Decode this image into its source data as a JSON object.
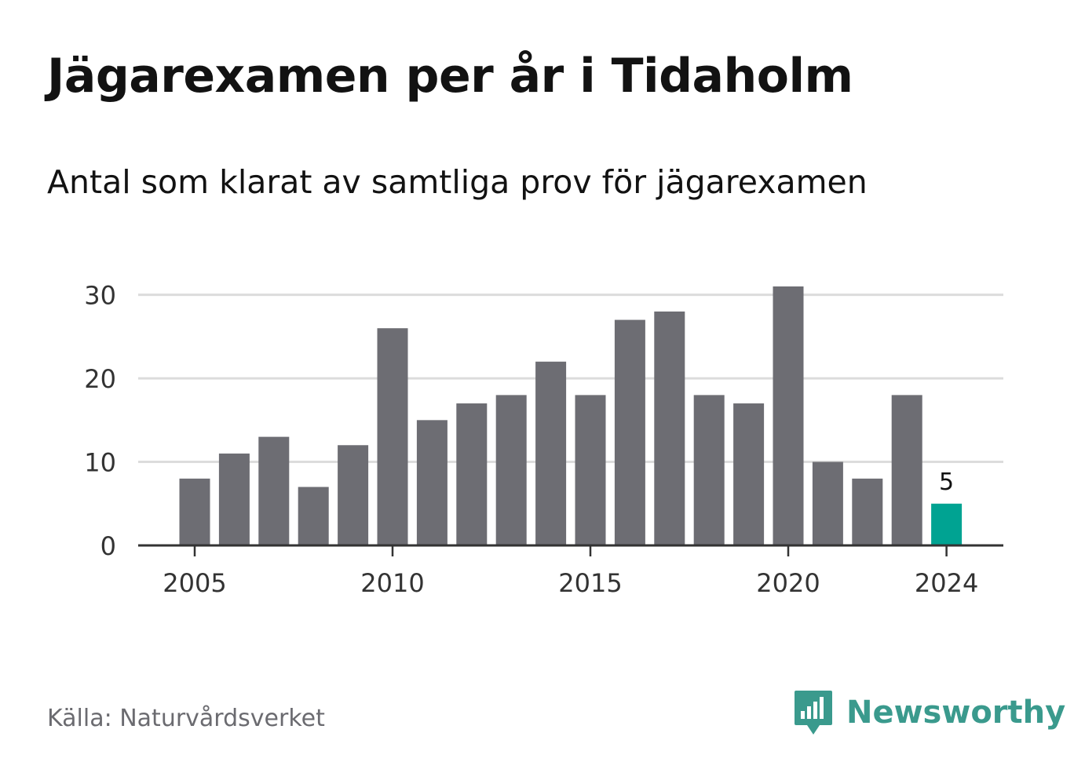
{
  "title": "Jägarexamen per år i Tidaholm",
  "subtitle": "Antal som klarat av samtliga prov för jägarexamen",
  "source": "Källa: Naturvårdsverket",
  "brand": {
    "name": "Newsworthy",
    "icon": "newsworthy-logo-icon"
  },
  "colors": {
    "bar": "#6d6d73",
    "highlight": "#00a392",
    "grid": "#dcdcdc",
    "axis": "#333333",
    "text": "#121212"
  },
  "chart_data": {
    "type": "bar",
    "categories": [
      "2005",
      "2006",
      "2007",
      "2008",
      "2009",
      "2010",
      "2011",
      "2012",
      "2013",
      "2014",
      "2015",
      "2016",
      "2017",
      "2018",
      "2019",
      "2020",
      "2021",
      "2022",
      "2023",
      "2024"
    ],
    "values": [
      8,
      11,
      13,
      7,
      12,
      26,
      15,
      17,
      18,
      22,
      18,
      27,
      28,
      18,
      17,
      31,
      10,
      8,
      18,
      5
    ],
    "highlight_index": 19,
    "data_labels": [
      {
        "category": "2024",
        "text": "5"
      }
    ],
    "x_tick_labels": [
      "2005",
      "2010",
      "2015",
      "2020",
      "2024"
    ],
    "y_ticks": [
      0,
      10,
      20,
      30
    ],
    "ylim": [
      0,
      31
    ],
    "grid": true,
    "legend": "none"
  }
}
